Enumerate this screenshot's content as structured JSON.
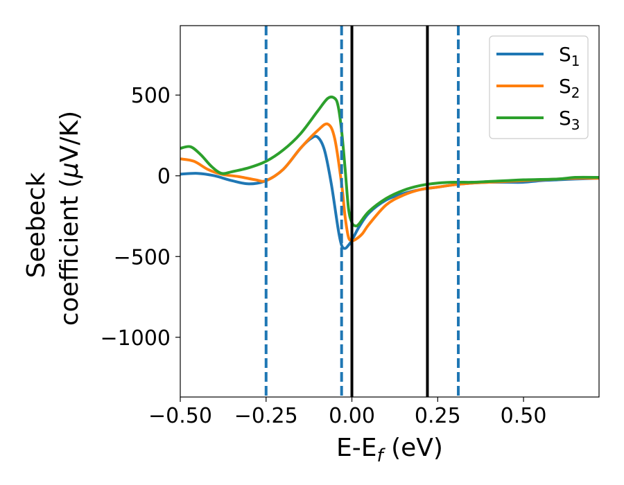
{
  "chart_data": {
    "type": "line",
    "xlabel_main": "E-E",
    "xlabel_sub": "f",
    "xlabel_unit": " (eV)",
    "ylabel_line1": "Seebeck",
    "ylabel_line2_prefix": "coefficient  (",
    "ylabel_mu": "μ",
    "ylabel_line2_suffix": "V/K)",
    "xlim": [
      -0.5,
      0.72
    ],
    "ylim": [
      -1370,
      930
    ],
    "xticks": [
      -0.5,
      -0.25,
      0.0,
      0.25,
      0.5
    ],
    "xtick_labels": [
      "−0.50",
      "−0.25",
      "0.00",
      "0.25",
      "0.50"
    ],
    "yticks": [
      500,
      0,
      -500,
      -1000
    ],
    "ytick_labels": [
      "500",
      "0",
      "−500",
      "−1000"
    ],
    "legend_position": "top-right",
    "grid": false,
    "vlines_solid": [
      0.0,
      0.22
    ],
    "vlines_dashed": [
      -0.25,
      -0.03,
      0.31
    ],
    "vline_solid_color": "#000000",
    "vline_dashed_color": "#1f77b4",
    "series": [
      {
        "name_main": "S",
        "name_sub": "1",
        "color": "#1f77b4",
        "x": [
          -0.5,
          -0.45,
          -0.4,
          -0.35,
          -0.3,
          -0.25,
          -0.2,
          -0.15,
          -0.12,
          -0.1,
          -0.08,
          -0.06,
          -0.04,
          -0.03,
          -0.02,
          -0.01,
          0.0,
          0.02,
          0.05,
          0.1,
          0.15,
          0.2,
          0.25,
          0.3,
          0.35,
          0.4,
          0.45,
          0.5,
          0.55,
          0.6,
          0.65,
          0.72
        ],
        "y": [
          10,
          15,
          0,
          -30,
          -50,
          -30,
          40,
          170,
          230,
          240,
          160,
          -50,
          -330,
          -430,
          -450,
          -430,
          -400,
          -320,
          -230,
          -150,
          -110,
          -85,
          -70,
          -55,
          -45,
          -40,
          -40,
          -40,
          -30,
          -25,
          -20,
          -15
        ]
      },
      {
        "name_main": "S",
        "name_sub": "2",
        "color": "#ff7f0e",
        "x": [
          -0.5,
          -0.46,
          -0.42,
          -0.38,
          -0.33,
          -0.28,
          -0.25,
          -0.2,
          -0.15,
          -0.1,
          -0.07,
          -0.05,
          -0.03,
          -0.02,
          -0.01,
          0.0,
          0.01,
          0.03,
          0.05,
          0.1,
          0.15,
          0.2,
          0.25,
          0.3,
          0.35,
          0.4,
          0.45,
          0.5,
          0.55,
          0.6,
          0.65,
          0.72
        ],
        "y": [
          105,
          90,
          40,
          10,
          -5,
          -25,
          -30,
          40,
          170,
          280,
          320,
          230,
          -50,
          -250,
          -380,
          -400,
          -395,
          -360,
          -300,
          -180,
          -120,
          -85,
          -70,
          -55,
          -45,
          -40,
          -35,
          -30,
          -25,
          -20,
          -15,
          -15
        ]
      },
      {
        "name_main": "S",
        "name_sub": "3",
        "color": "#2ca02c",
        "x": [
          -0.5,
          -0.47,
          -0.44,
          -0.41,
          -0.38,
          -0.35,
          -0.3,
          -0.25,
          -0.2,
          -0.15,
          -0.1,
          -0.07,
          -0.05,
          -0.04,
          -0.03,
          -0.02,
          -0.01,
          0.0,
          0.01,
          0.02,
          0.05,
          0.1,
          0.15,
          0.2,
          0.25,
          0.3,
          0.35,
          0.4,
          0.45,
          0.5,
          0.6,
          0.65,
          0.72
        ],
        "y": [
          170,
          180,
          130,
          60,
          15,
          25,
          50,
          90,
          160,
          260,
          400,
          480,
          480,
          430,
          280,
          50,
          -200,
          -290,
          -310,
          -300,
          -220,
          -140,
          -90,
          -60,
          -45,
          -40,
          -40,
          -35,
          -30,
          -25,
          -20,
          -10,
          -10
        ]
      }
    ]
  }
}
